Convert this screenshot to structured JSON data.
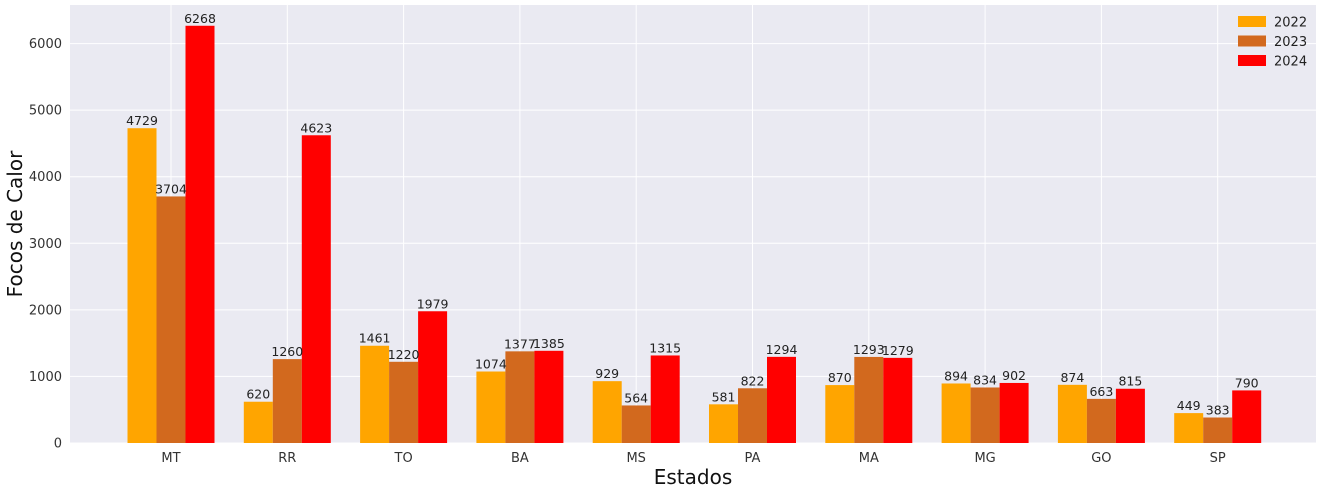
{
  "chart_data": {
    "type": "bar",
    "title": "",
    "xlabel": "Estados",
    "ylabel": "Focos de Calor",
    "categories": [
      "MT",
      "RR",
      "TO",
      "BA",
      "MS",
      "PA",
      "MA",
      "MG",
      "GO",
      "SP"
    ],
    "series": [
      {
        "name": "2022",
        "color": "#FFA500",
        "values": [
          4729,
          620,
          1461,
          1074,
          929,
          581,
          870,
          894,
          874,
          449
        ]
      },
      {
        "name": "2023",
        "color": "#D2691E",
        "values": [
          3704,
          1260,
          1220,
          1377,
          564,
          822,
          1293,
          834,
          663,
          383
        ]
      },
      {
        "name": "2024",
        "color": "#FF0000",
        "values": [
          6268,
          4623,
          1979,
          1385,
          1315,
          1294,
          1279,
          902,
          815,
          790
        ]
      }
    ],
    "y_ticks": [
      0,
      1000,
      2000,
      3000,
      4000,
      5000,
      6000
    ],
    "ylim": [
      0,
      6580
    ],
    "grid": true,
    "legend_position": "top-right",
    "background": "#EAEAF2"
  }
}
